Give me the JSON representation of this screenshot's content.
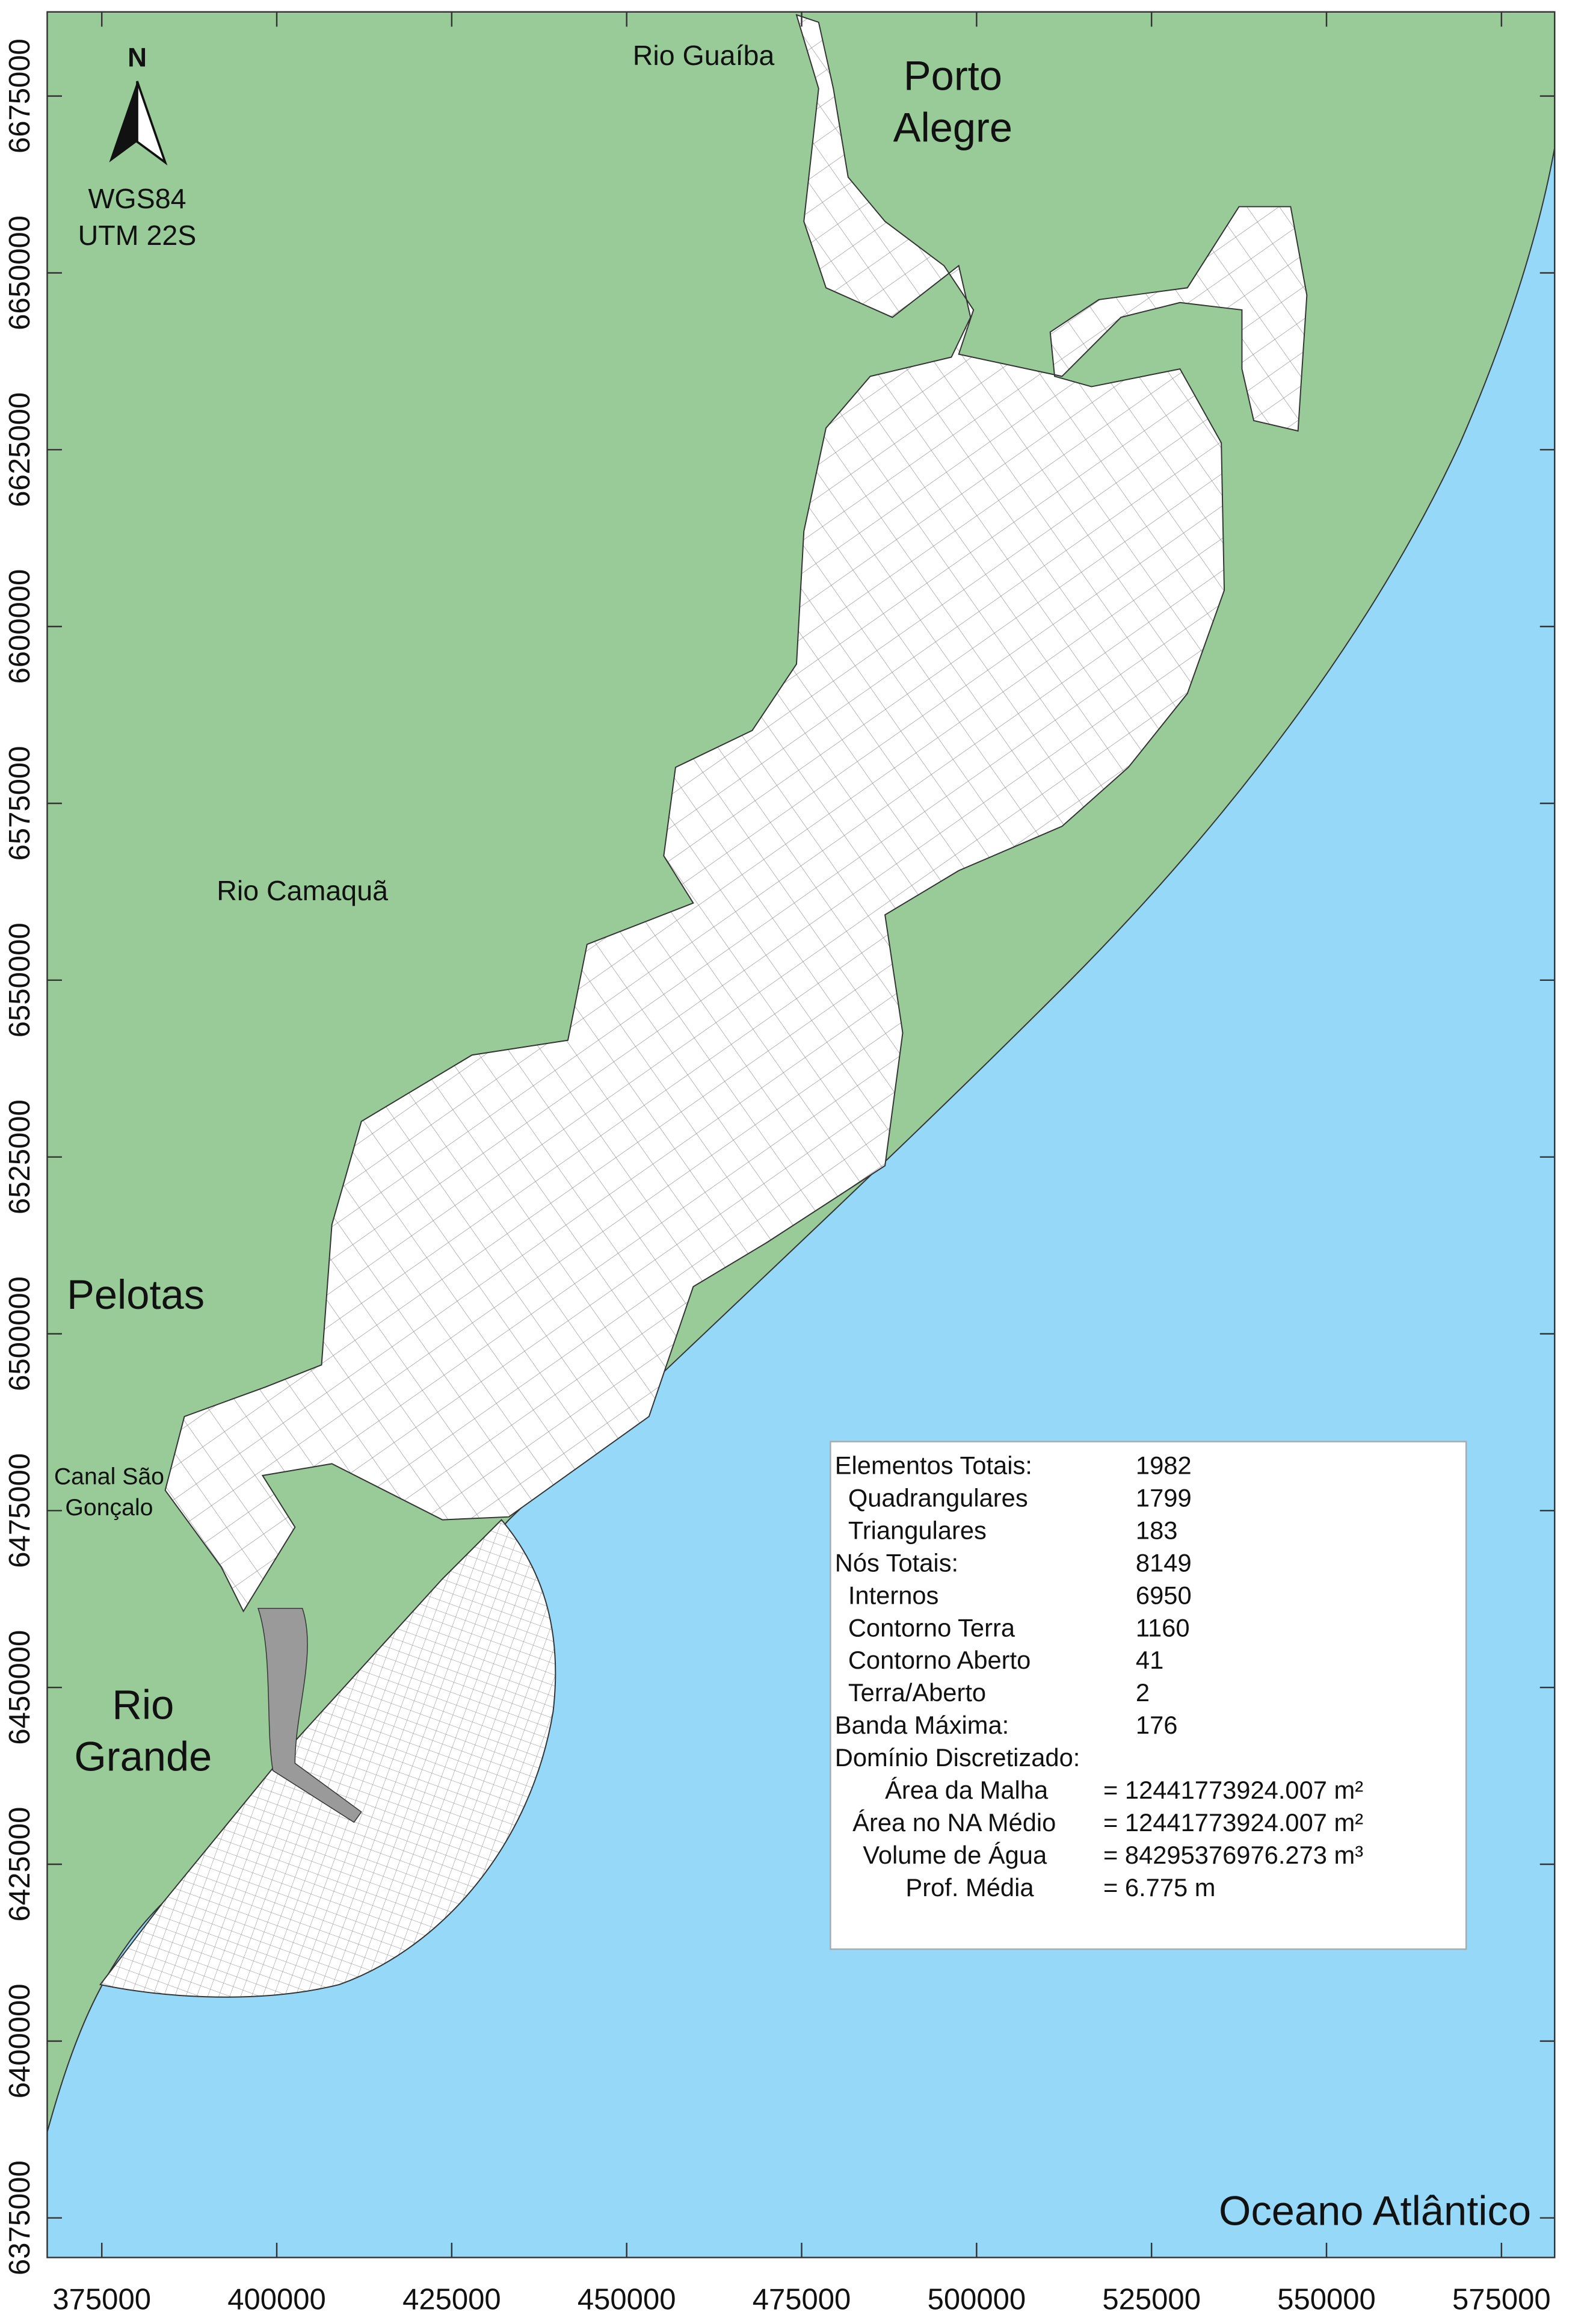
{
  "map": {
    "labels": {
      "north": "N",
      "datum": "WGS84",
      "projection": "UTM 22S",
      "rio_guaiba": "Rio Guaíba",
      "porto_alegre": [
        "Porto",
        "Alegre"
      ],
      "rio_camaqua": "Rio Camaquã",
      "pelotas": "Pelotas",
      "canal": [
        "Canal São",
        "Gonçalo"
      ],
      "rio_grande": [
        "Rio",
        "Grande"
      ],
      "ocean": "Oceano Atlântico"
    },
    "axes": {
      "xlim": [
        367200,
        582600
      ],
      "ylim": [
        6369400,
        6686900
      ],
      "xticks": [
        375000,
        400000,
        425000,
        450000,
        475000,
        500000,
        525000,
        550000,
        575000
      ],
      "yticks": [
        6375000,
        6400000,
        6425000,
        6450000,
        6475000,
        6500000,
        6525000,
        6550000,
        6575000,
        6600000,
        6625000,
        6650000,
        6675000
      ]
    },
    "table": {
      "rows": [
        [
          "Elementos Totais:",
          "1982"
        ],
        [
          "Quadrangulares",
          "1799"
        ],
        [
          "Triangulares",
          "183"
        ],
        [
          "Nós Totais:",
          "8149"
        ],
        [
          "Internos",
          "6950"
        ],
        [
          "Contorno Terra",
          "1160"
        ],
        [
          "Contorno Aberto",
          "41"
        ],
        [
          "Terra/Aberto",
          "2"
        ],
        [
          "Banda Máxima:",
          "176"
        ],
        [
          "Domínio Discretizado:",
          ""
        ],
        [
          "Área da Malha",
          "= 12441773924.007 m²"
        ],
        [
          "Área no NA Médio",
          "= 12441773924.007 m²"
        ],
        [
          "Volume de Água",
          "= 84295376976.273 m³"
        ],
        [
          "Prof. Média",
          "= 6.775 m"
        ]
      ]
    }
  }
}
